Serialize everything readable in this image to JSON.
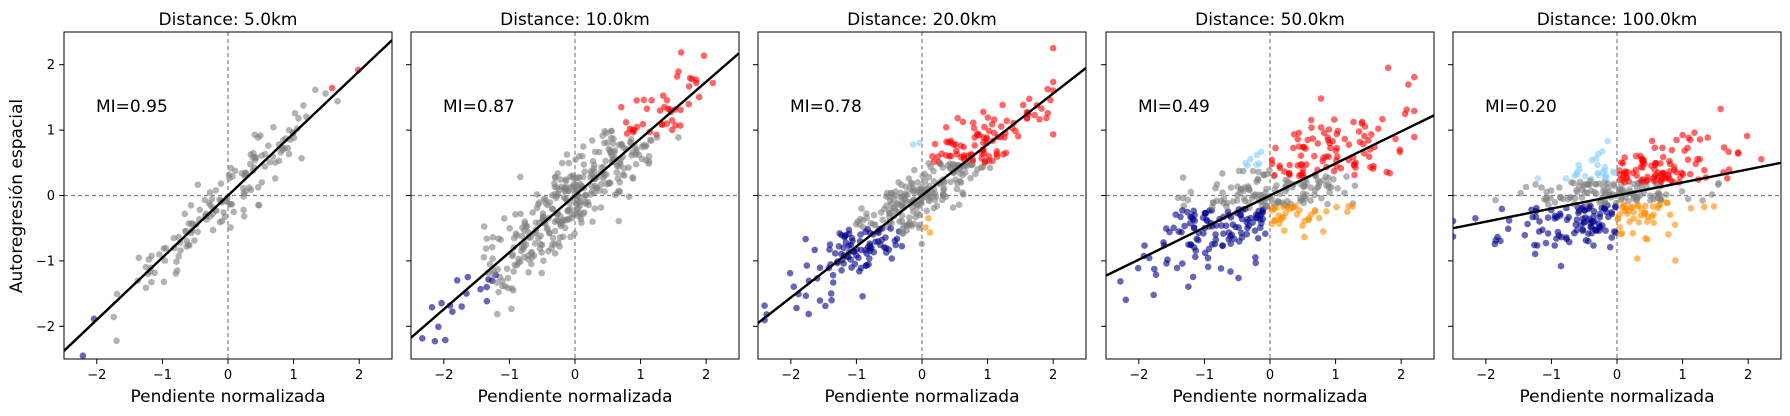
{
  "chart_data": {
    "type": "scatter",
    "shared_ylabel": "Autoregresión espacial",
    "xlabel": "Pendiente normalizada",
    "xlim": [
      -2.5,
      2.5
    ],
    "ylim": [
      -2.5,
      2.5
    ],
    "x_ticks": [
      -2,
      -1,
      0,
      1,
      2
    ],
    "y_ticks": [
      -2,
      -1,
      0,
      1,
      2
    ],
    "tick_labels": [
      "−2",
      "−1",
      "0",
      "1",
      "2"
    ],
    "reference_lines": {
      "x": 0,
      "y": 0,
      "style": "dashed",
      "color": "#808080"
    },
    "category_colors": {
      "high-high": "#ff0000",
      "low-low": "#00008b",
      "low-high": "#87cefa",
      "high-low": "#ff8c00",
      "not-significant": "#808080"
    },
    "panels": [
      {
        "title": "Distance: 5.0km",
        "annotation": "MI=0.95",
        "moran_i": 0.95,
        "fit_slope": 0.95,
        "fit_intercept": 0.0
      },
      {
        "title": "Distance: 10.0km",
        "annotation": "MI=0.87",
        "moran_i": 0.87,
        "fit_slope": 0.87,
        "fit_intercept": 0.0
      },
      {
        "title": "Distance: 20.0km",
        "annotation": "MI=0.78",
        "moran_i": 0.78,
        "fit_slope": 0.78,
        "fit_intercept": 0.0
      },
      {
        "title": "Distance: 50.0km",
        "annotation": "MI=0.49",
        "moran_i": 0.49,
        "fit_slope": 0.49,
        "fit_intercept": 0.0
      },
      {
        "title": "Distance: 100.0km",
        "annotation": "MI=0.20",
        "moran_i": 0.2,
        "fit_slope": 0.2,
        "fit_intercept": 0.0
      }
    ]
  }
}
